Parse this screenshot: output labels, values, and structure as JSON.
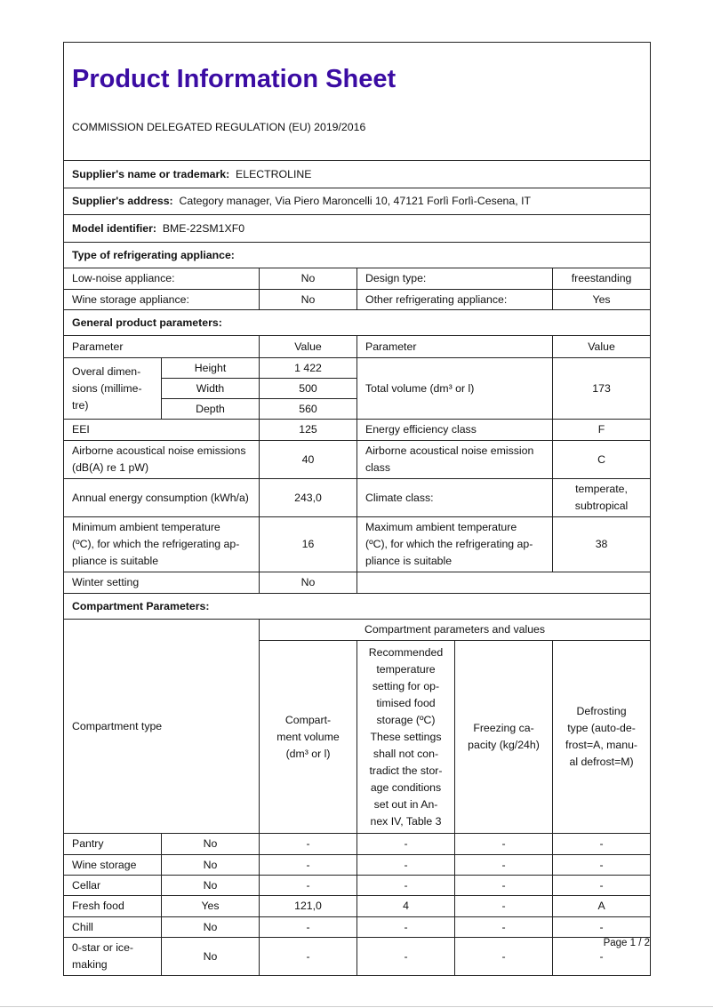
{
  "title": "Product Information Sheet",
  "regulation": "COMMISSION DELEGATED REGULATION (EU) 2019/2016",
  "supplier_name": {
    "label": "Supplier's name or trademark:",
    "value": "ELECTROLINE"
  },
  "supplier_address": {
    "label": "Supplier's address:",
    "value": "Category manager, Via Piero Maroncelli 10, 47121 Forlì Forlì-Cesena, IT"
  },
  "model": {
    "label": "Model identifier:",
    "value": "BME-22SM1XF0"
  },
  "type_header": "Type of refrigerating appliance:",
  "type_rows": [
    {
      "l1": "Low-noise appliance:",
      "v1": "No",
      "l2": "Design type:",
      "v2": "freestanding"
    },
    {
      "l1": "Wine storage appliance:",
      "v1": "No",
      "l2": "Other refrigerating appliance:",
      "v2": "Yes"
    }
  ],
  "general_header": "General product parameters:",
  "param_head": {
    "p": "Parameter",
    "v": "Value"
  },
  "dimensions": {
    "label": "Overal dimen-\nsions (millime-\ntre)",
    "rows": [
      {
        "n": "Height",
        "v": "1 422"
      },
      {
        "n": "Width",
        "v": "500"
      },
      {
        "n": "Depth",
        "v": "560"
      }
    ],
    "vol_label": "Total volume (dm³ or l)",
    "vol_value": "173"
  },
  "params": [
    {
      "l1": "EEI",
      "v1": "125",
      "l2": "Energy efficiency class",
      "v2": "F"
    },
    {
      "l1": "Airborne acoustical noise emissions\n(dB(A) re 1 pW)",
      "v1": "40",
      "l2": "Airborne acoustical noise emission\nclass",
      "v2": "C"
    },
    {
      "l1": "Annual energy consumption (kWh/a)",
      "v1": "243,0",
      "l2": "Climate class:",
      "v2": "temperate,\nsubtropical"
    },
    {
      "l1": "Minimum ambient temperature\n(ºC), for which the refrigerating ap-\npliance is suitable",
      "v1": "16",
      "l2": "Maximum ambient temperature\n(ºC), for which the refrigerating ap-\npliance is suitable",
      "v2": "38"
    }
  ],
  "winter": {
    "label": "Winter setting",
    "value": "No"
  },
  "compartment_header": "Compartment Parameters:",
  "comp_head": {
    "type": "Compartment type",
    "group": "Compartment parameters and values",
    "volume": "Compart-\nment volume\n(dm³ or l)",
    "temp": "Recommended\ntemperature\nsetting for op-\ntimised food\nstorage (ºC)\nThese settings\nshall not con-\ntradict the stor-\nage conditions\nset out in An-\nnex IV, Table 3",
    "freezing": "Freezing ca-\npacity (kg/24h)",
    "defrost": "Defrosting\ntype (auto-de-\nfrost=A, manu-\nal defrost=M)"
  },
  "compartments": [
    {
      "name": "Pantry",
      "present": "No",
      "volume": "-",
      "temp": "-",
      "freezing": "-",
      "defrost": "-"
    },
    {
      "name": "Wine storage",
      "present": "No",
      "volume": "-",
      "temp": "-",
      "freezing": "-",
      "defrost": "-"
    },
    {
      "name": "Cellar",
      "present": "No",
      "volume": "-",
      "temp": "-",
      "freezing": "-",
      "defrost": "-"
    },
    {
      "name": "Fresh food",
      "present": "Yes",
      "volume": "121,0",
      "temp": "4",
      "freezing": "-",
      "defrost": "A"
    },
    {
      "name": "Chill",
      "present": "No",
      "volume": "-",
      "temp": "-",
      "freezing": "-",
      "defrost": "-"
    },
    {
      "name": "0-star or ice-\nmaking",
      "present": "No",
      "volume": "-",
      "temp": "-",
      "freezing": "-",
      "defrost": "-"
    }
  ],
  "page_label": "Page 1 / 2",
  "colors": {
    "title": "#3b0ca3"
  }
}
